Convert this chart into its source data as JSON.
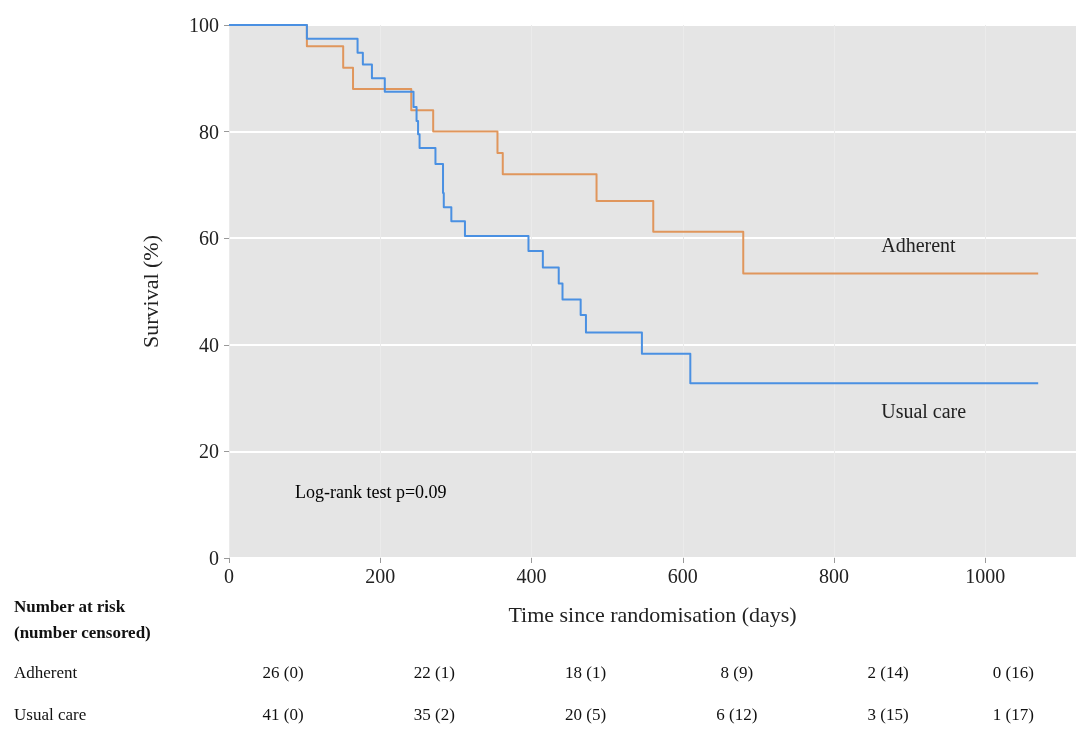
{
  "chart_data": {
    "type": "step",
    "xlabel": "Time since randomisation (days)",
    "ylabel": "Survival (%)",
    "xlim": [
      0,
      1120
    ],
    "xticks": [
      0,
      200,
      400,
      600,
      800,
      1000
    ],
    "ylim": [
      0,
      100
    ],
    "yticks": [
      0,
      20,
      40,
      60,
      80,
      100
    ],
    "grid": true,
    "legend": false,
    "marker": "none",
    "line_style": "solid",
    "series": [
      {
        "name": "Adherent",
        "color": "#e0965c",
        "x": [
          0,
          103,
          151,
          164,
          241,
          270,
          355,
          362,
          486,
          561,
          680,
          1070
        ],
        "values": [
          100,
          96,
          92,
          88,
          84,
          80,
          76,
          72,
          67,
          61.2,
          53.4,
          53.4
        ]
      },
      {
        "name": "Usual care",
        "color": "#4a90e2",
        "x": [
          0,
          103,
          170,
          177,
          189,
          206,
          244,
          248,
          250,
          252,
          273,
          283,
          284,
          294,
          312,
          396,
          415,
          436,
          441,
          465,
          472,
          546,
          610,
          1070
        ],
        "values": [
          100,
          97.4,
          94.8,
          92.6,
          90,
          87.5,
          84.6,
          82,
          79.5,
          76.9,
          73.9,
          68.5,
          65.8,
          63.2,
          60.4,
          57.6,
          54.5,
          51.5,
          48.5,
          45.6,
          42.3,
          38.3,
          32.8,
          32.8
        ]
      }
    ],
    "annotations": [
      "Log-rank test p=0.09",
      "Number at risk\n(number censored)",
      "Adherent",
      "26 (0)",
      "22 (1)",
      "18 (1)",
      "8 (9)",
      "2 (14)",
      "0 (16)",
      "Usual care",
      "41 (0)",
      "35 (2)",
      "20 (5)",
      "6 (12)",
      "3 (15)",
      "1 (17)"
    ]
  }
}
